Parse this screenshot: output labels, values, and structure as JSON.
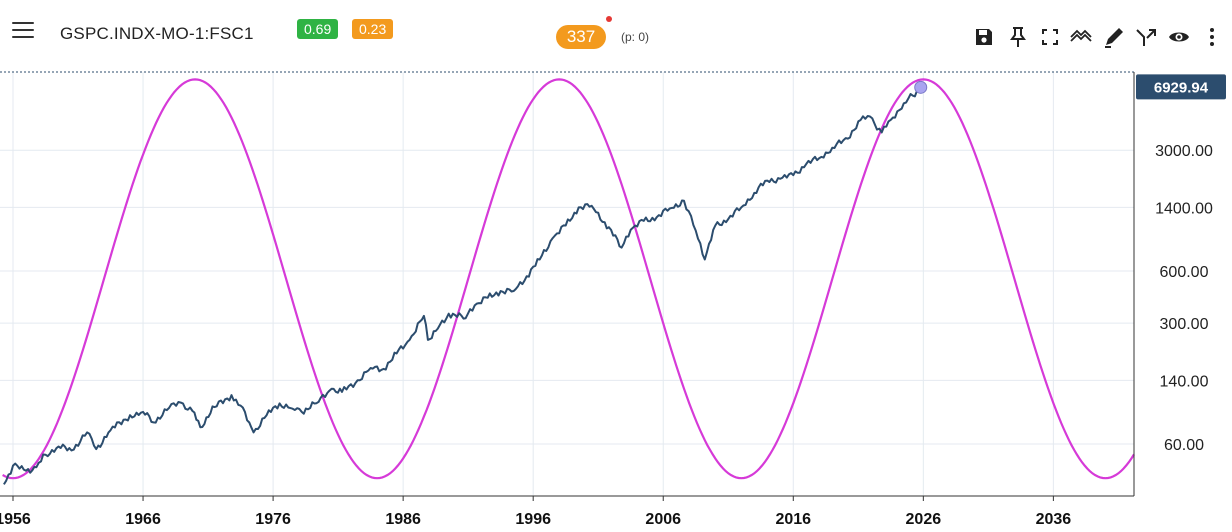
{
  "header": {
    "symbol": "GSPC.INDX-MO-1:FSC1",
    "badge_green": "0.69",
    "badge_orange": "0.23",
    "count_pill": "337",
    "p_info": "(p: 0)"
  },
  "toolbar_icons": [
    "save-icon",
    "pin-icon",
    "fullscreen-icon",
    "trend-icon",
    "draw-icon",
    "merge-icon",
    "eye-icon",
    "more-vertical-icon"
  ],
  "colors": {
    "price_line": "#2c4d6e",
    "cycle_line": "#d63ad8",
    "price_label_bg": "#2c4d6e",
    "badge_green": "#2fb344",
    "badge_orange": "#f39a1e",
    "grid": "#e4eaf0"
  },
  "chart_data": {
    "type": "line",
    "y_scale": "log",
    "ylim": [
      30,
      8500
    ],
    "xlim": [
      1955.0,
      2042.2
    ],
    "x_tick_labels": [
      "1956",
      "1966",
      "1976",
      "1986",
      "1996",
      "2006",
      "2016",
      "2026",
      "2036"
    ],
    "x_ticks": [
      1956,
      1966,
      1976,
      1986,
      1996,
      2006,
      2016,
      2026,
      2036
    ],
    "y_tick_labels": [
      "60.00",
      "140.00",
      "300.00",
      "600.00",
      "1400.00",
      "3000.00"
    ],
    "y_ticks": [
      60,
      140,
      300,
      600,
      1400,
      3000
    ],
    "last_price_label": "6929.94",
    "grid": true,
    "series": [
      {
        "role": "price",
        "x": [
          1955.3,
          1956.0,
          1957.0,
          1957.8,
          1958.5,
          1959.5,
          1960.5,
          1961.7,
          1962.4,
          1963.5,
          1965.0,
          1966.0,
          1966.8,
          1968.0,
          1968.9,
          1969.8,
          1970.4,
          1971.5,
          1972.8,
          1973.5,
          1974.5,
          1975.5,
          1976.5,
          1977.5,
          1978.2,
          1979.5,
          1980.5,
          1981.3,
          1982.5,
          1983.5,
          1984.5,
          1985.5,
          1986.5,
          1987.6,
          1987.9,
          1988.5,
          1989.5,
          1990.8,
          1991.5,
          1992.5,
          1993.5,
          1994.5,
          1995.5,
          1996.5,
          1997.5,
          1998.5,
          1999.5,
          2000.5,
          2001.5,
          2002.8,
          2003.5,
          2004.5,
          2005.5,
          2006.5,
          2007.6,
          2008.5,
          2009.2,
          2010.0,
          2011.0,
          2012.0,
          2013.0,
          2014.0,
          2015.0,
          2016.0,
          2017.0,
          2018.0,
          2019.0,
          2020.2,
          2021.0,
          2021.9,
          2022.8,
          2023.5,
          2024.5,
          2025.2,
          2025.8
        ],
        "y": [
          35,
          45,
          42,
          44,
          52,
          58,
          55,
          70,
          56,
          72,
          88,
          92,
          80,
          97,
          104,
          93,
          75,
          98,
          115,
          100,
          70,
          88,
          103,
          96,
          92,
          105,
          125,
          120,
          140,
          165,
          163,
          200,
          240,
          330,
          240,
          270,
          340,
          320,
          380,
          420,
          460,
          460,
          560,
          700,
          930,
          1100,
          1400,
          1430,
          1150,
          820,
          1040,
          1170,
          1230,
          1380,
          1530,
          1030,
          700,
          1100,
          1200,
          1400,
          1700,
          2000,
          2050,
          2150,
          2500,
          2700,
          3100,
          3500,
          4400,
          4700,
          3800,
          4500,
          5600,
          6200,
          6930
        ]
      },
      {
        "role": "cycle",
        "function": "sine",
        "period_years": 28,
        "peak_year": 1970.0,
        "min_value": 38,
        "max_value": 7700,
        "x_range": [
          1955.2,
          2042.2
        ]
      }
    ]
  }
}
